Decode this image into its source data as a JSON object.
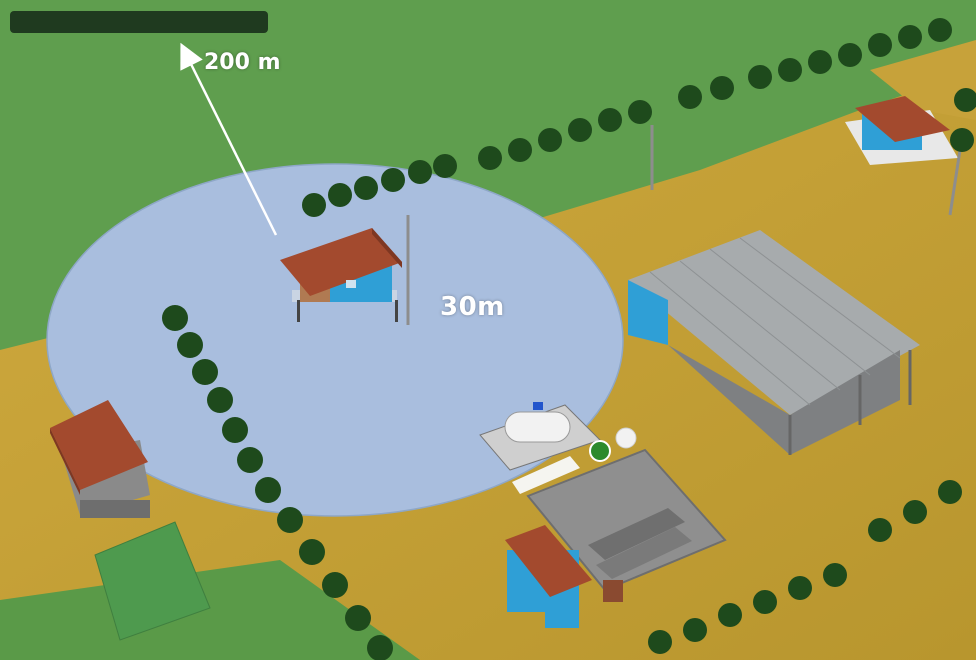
{
  "labels": {
    "distance_far": "200 m",
    "radius": "30m"
  },
  "colors": {
    "grass": "#5f9e4e",
    "soil": "#c8a43a",
    "water_zone": "#a9bede",
    "roof_tile": "#a34a2e",
    "wall_blue": "#2f9fd6",
    "metal_roof": "#a7abad",
    "concrete": "#8f8f8f",
    "tree": "#1e4a1c"
  }
}
